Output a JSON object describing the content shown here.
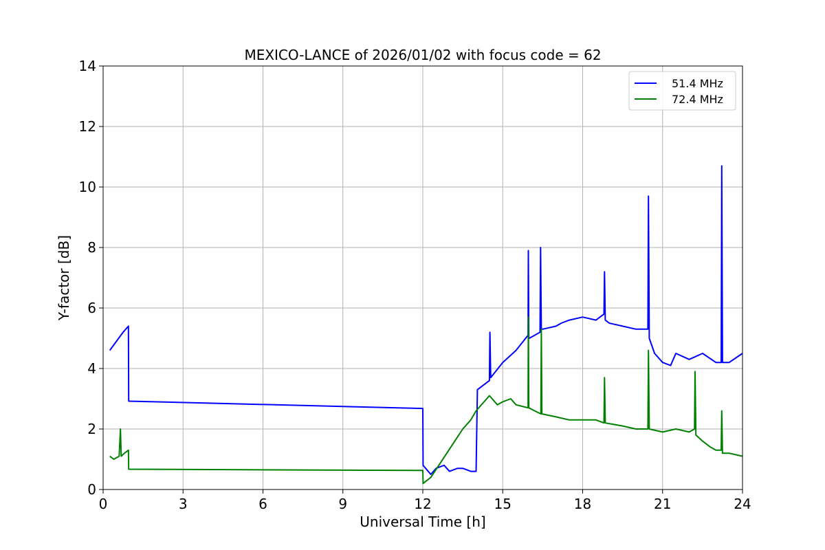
{
  "chart_data": {
    "type": "line",
    "title": "MEXICO-LANCE of 2026/01/02 with focus code = 62",
    "xlabel": "Universal Time [h]",
    "ylabel": "Y-factor [dB]",
    "xlim": [
      0,
      24
    ],
    "ylim": [
      0,
      14
    ],
    "xticks": [
      0,
      3,
      6,
      9,
      12,
      15,
      18,
      21,
      24
    ],
    "yticks": [
      0,
      2,
      4,
      6,
      8,
      10,
      12,
      14
    ],
    "grid": true,
    "legend_position": "top-right",
    "series": [
      {
        "name": "51.4 MHz",
        "color": "#0000ff",
        "x": [
          0.25,
          0.5,
          0.75,
          0.95,
          0.96,
          12.0,
          12.01,
          12.3,
          12.5,
          12.8,
          13.0,
          13.3,
          13.5,
          13.8,
          14.0,
          14.05,
          14.5,
          14.52,
          14.55,
          15.0,
          15.5,
          15.95,
          15.96,
          15.98,
          16.0,
          16.4,
          16.42,
          16.45,
          16.5,
          17.0,
          17.2,
          17.5,
          18.0,
          18.5,
          18.8,
          18.82,
          18.85,
          19.0,
          19.5,
          20.0,
          20.45,
          20.47,
          20.5,
          20.7,
          21.0,
          21.3,
          21.5,
          22.0,
          22.5,
          23.0,
          23.2,
          23.22,
          23.25,
          23.5,
          24.0
        ],
        "y": [
          4.6,
          4.9,
          5.2,
          5.4,
          2.92,
          2.68,
          0.8,
          0.5,
          0.7,
          0.8,
          0.6,
          0.7,
          0.7,
          0.6,
          0.6,
          3.3,
          3.6,
          5.2,
          3.7,
          4.2,
          4.6,
          5.1,
          7.9,
          5.0,
          5.0,
          5.2,
          8.0,
          5.3,
          5.3,
          5.4,
          5.5,
          5.6,
          5.7,
          5.6,
          5.8,
          7.2,
          5.6,
          5.5,
          5.4,
          5.3,
          5.3,
          9.7,
          5.0,
          4.5,
          4.2,
          4.1,
          4.5,
          4.3,
          4.5,
          4.2,
          4.2,
          10.7,
          4.2,
          4.2,
          4.5
        ]
      },
      {
        "name": "72.4 MHz",
        "color": "#008000",
        "x": [
          0.25,
          0.4,
          0.6,
          0.65,
          0.68,
          0.8,
          0.95,
          0.96,
          12.0,
          12.01,
          12.3,
          12.6,
          12.9,
          13.2,
          13.5,
          13.8,
          14.0,
          14.3,
          14.5,
          14.8,
          15.0,
          15.3,
          15.5,
          15.95,
          15.96,
          15.98,
          16.2,
          16.43,
          16.45,
          16.47,
          17.0,
          17.5,
          18.0,
          18.5,
          18.8,
          18.82,
          18.85,
          19.5,
          20.0,
          20.45,
          20.47,
          20.5,
          21.0,
          21.5,
          22.0,
          22.2,
          22.22,
          22.25,
          22.5,
          22.8,
          23.0,
          23.2,
          23.22,
          23.25,
          23.5,
          24.0
        ],
        "y": [
          1.1,
          1.0,
          1.1,
          2.0,
          1.1,
          1.2,
          1.3,
          0.67,
          0.63,
          0.2,
          0.4,
          0.8,
          1.2,
          1.6,
          2.0,
          2.3,
          2.6,
          2.9,
          3.1,
          2.8,
          2.9,
          3.0,
          2.8,
          2.7,
          5.7,
          2.7,
          2.6,
          2.5,
          5.3,
          2.5,
          2.4,
          2.3,
          2.3,
          2.3,
          2.2,
          3.7,
          2.2,
          2.1,
          2.0,
          2.0,
          4.6,
          2.0,
          1.9,
          2.0,
          1.9,
          2.0,
          3.9,
          1.8,
          1.6,
          1.4,
          1.3,
          1.3,
          2.6,
          1.2,
          1.2,
          1.1
        ]
      }
    ]
  }
}
